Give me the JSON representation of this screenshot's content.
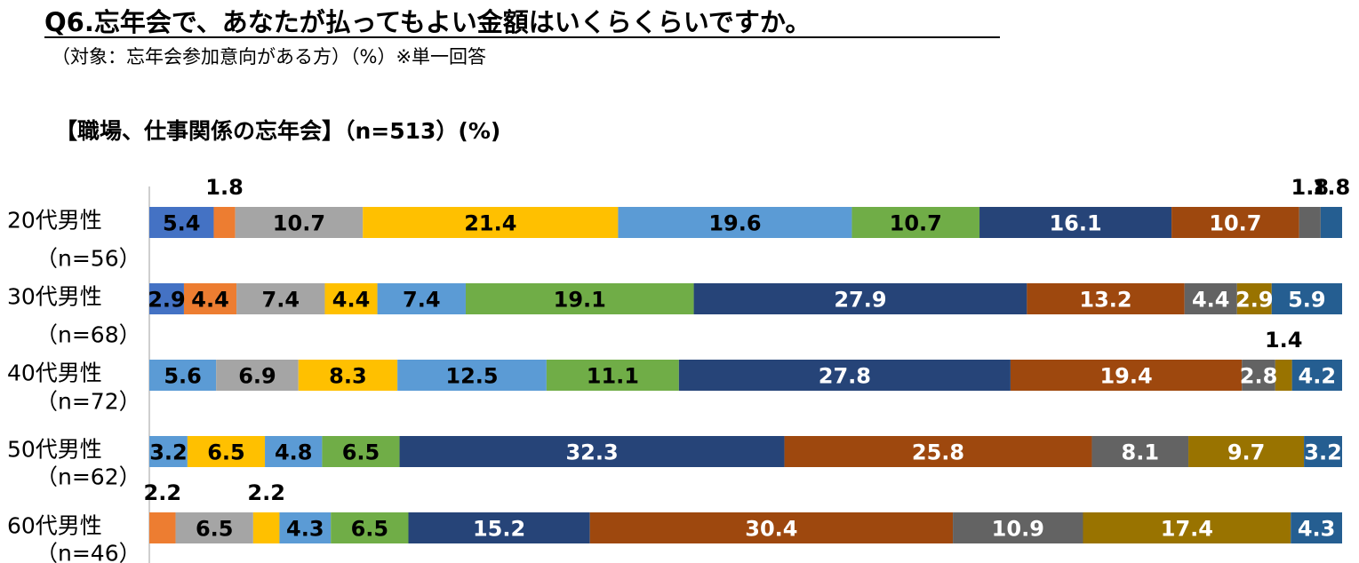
{
  "header": {
    "title": "Q6.忘年会で、あなたが払ってもよい金額はいくらくらいですか。",
    "subtitle": "（対象：忘年会参加意向がある方）（%）※単一回答",
    "section_title": "【職場、仕事関係の忘年会】（n=513）(%)"
  },
  "colors": [
    "#4472C4",
    "#ED7D31",
    "#A5A5A5",
    "#FFC000",
    "#5B9BD5",
    "#70AD47",
    "#264478",
    "#9E480E",
    "#636363",
    "#997300",
    "#255E91"
  ],
  "chart_data": {
    "type": "bar",
    "orientation": "horizontal",
    "stacked": true,
    "xlim": [
      0,
      100
    ],
    "categories": [
      {
        "name": "20代男性",
        "n": "（n=56）"
      },
      {
        "name": "30代男性",
        "n": "（n=68）"
      },
      {
        "name": "40代男性",
        "n": "（n=72）"
      },
      {
        "name": "50代男性",
        "n": "（n=62）"
      },
      {
        "name": "60代男性",
        "n": "（n=46）"
      }
    ],
    "rows": [
      [
        5.4,
        1.8,
        10.7,
        21.4,
        19.6,
        10.7,
        16.1,
        10.7,
        1.8,
        0,
        1.8
      ],
      [
        2.9,
        4.4,
        7.4,
        4.4,
        7.4,
        19.1,
        27.9,
        13.2,
        4.4,
        2.9,
        5.9
      ],
      [
        5.6,
        0,
        6.9,
        8.3,
        12.5,
        11.1,
        27.8,
        19.4,
        2.8,
        1.4,
        4.2
      ],
      [
        3.2,
        0,
        6.5,
        4.8,
        6.5,
        32.3,
        25.8,
        8.1,
        9.7,
        3.2,
        0
      ],
      [
        0,
        2.2,
        6.5,
        2.2,
        4.3,
        6.5,
        15.2,
        30.4,
        10.9,
        17.4,
        4.3
      ]
    ],
    "row_colors": [
      [
        0,
        1,
        2,
        3,
        4,
        5,
        6,
        7,
        8,
        9,
        10
      ],
      [
        0,
        1,
        2,
        3,
        4,
        5,
        6,
        7,
        8,
        9,
        10
      ],
      [
        4,
        1,
        2,
        3,
        4,
        5,
        6,
        7,
        8,
        9,
        10
      ],
      [
        4,
        1,
        3,
        4,
        5,
        6,
        7,
        8,
        9,
        10,
        10
      ],
      [
        0,
        1,
        2,
        3,
        4,
        5,
        6,
        7,
        8,
        9,
        10
      ]
    ]
  }
}
